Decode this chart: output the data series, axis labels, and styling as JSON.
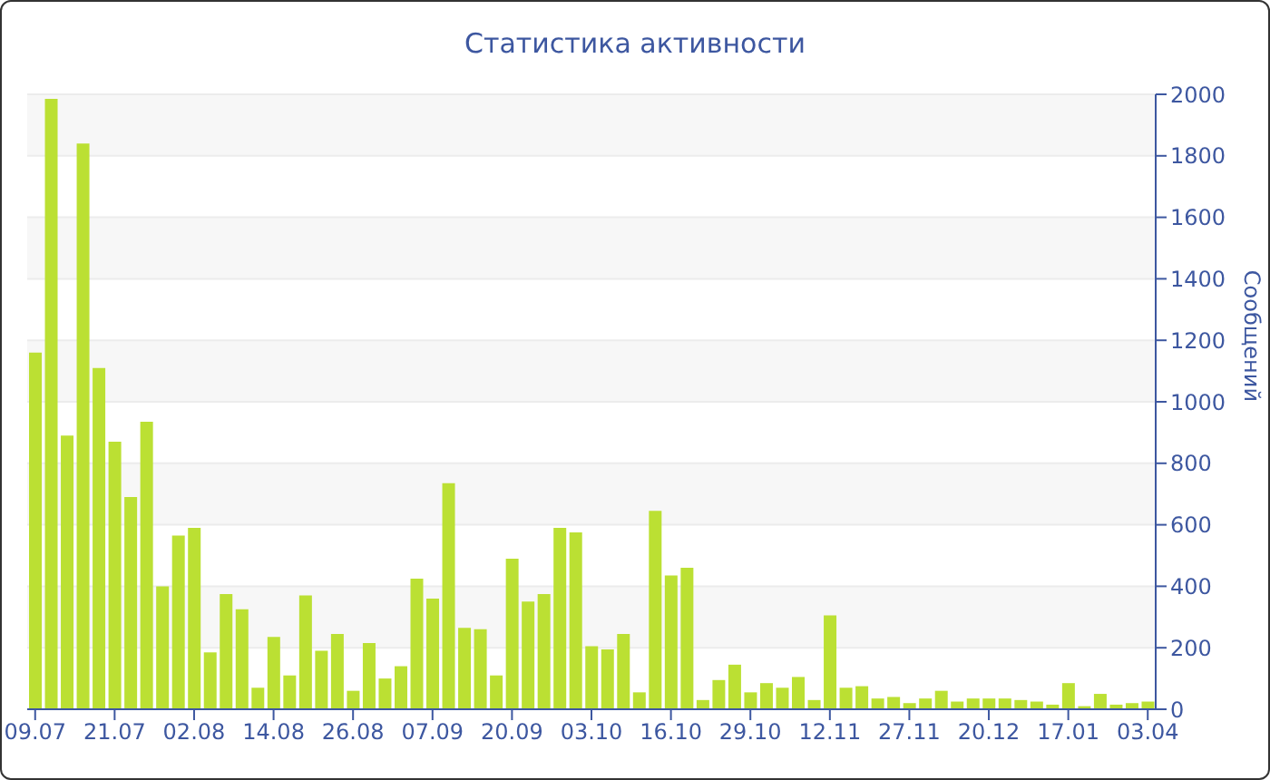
{
  "chart_data": {
    "type": "bar",
    "title": "Статистика активности",
    "ylabel": "Сообщений",
    "categories": [
      "09.07",
      null,
      null,
      null,
      null,
      "21.07",
      null,
      null,
      null,
      null,
      "02.08",
      null,
      null,
      null,
      null,
      "14.08",
      null,
      null,
      null,
      null,
      "26.08",
      null,
      null,
      null,
      null,
      "07.09",
      null,
      null,
      null,
      null,
      "20.09",
      null,
      null,
      null,
      null,
      "03.10",
      null,
      null,
      null,
      null,
      "16.10",
      null,
      null,
      null,
      null,
      "29.10",
      null,
      null,
      null,
      null,
      "12.11",
      null,
      null,
      null,
      null,
      "27.11",
      null,
      null,
      null,
      null,
      "20.12",
      null,
      null,
      null,
      null,
      "17.01",
      null,
      null,
      null,
      null,
      "03.04"
    ],
    "values": [
      1160,
      1985,
      890,
      1840,
      1110,
      870,
      690,
      935,
      400,
      565,
      590,
      185,
      375,
      325,
      70,
      235,
      110,
      370,
      190,
      245,
      60,
      215,
      100,
      140,
      425,
      360,
      735,
      265,
      260,
      110,
      490,
      350,
      375,
      590,
      575,
      205,
      195,
      245,
      55,
      645,
      435,
      460,
      30,
      95,
      145,
      55,
      85,
      70,
      105,
      30,
      305,
      70,
      75,
      35,
      40,
      20,
      35,
      60,
      25,
      35,
      35,
      35,
      30,
      25,
      15,
      85,
      10,
      50,
      15,
      20,
      25
    ],
    "color": "#bbe033",
    "ylim": [
      0,
      2000
    ],
    "yticks": [
      0,
      200,
      400,
      600,
      800,
      1000,
      1200,
      1400,
      1600,
      1800,
      2000
    ],
    "grid": "y",
    "legend": false
  }
}
